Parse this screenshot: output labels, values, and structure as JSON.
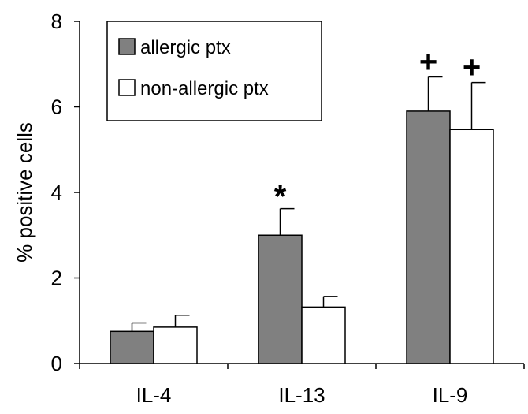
{
  "chart_data": {
    "type": "bar",
    "title": "",
    "xlabel": "",
    "ylabel": "% positive cells",
    "ylim": [
      0,
      8
    ],
    "yticks": [
      "0",
      "2",
      "4",
      "6",
      "8"
    ],
    "categories": [
      "IL-4",
      "IL-13",
      "IL-9"
    ],
    "grid": false,
    "legend_position": "top-left",
    "series": [
      {
        "name": "allergic ptx",
        "color": "#808080",
        "values": [
          0.75,
          3.0,
          5.9
        ],
        "errors": [
          0.2,
          0.62,
          0.8
        ]
      },
      {
        "name": "non-allergic ptx",
        "color": "#ffffff",
        "values": [
          0.85,
          1.32,
          5.47
        ],
        "errors": [
          0.28,
          0.25,
          1.1
        ]
      }
    ],
    "annotations": [
      {
        "category": "IL-13",
        "series": 0,
        "text": "*"
      },
      {
        "category": "IL-9",
        "series": 0,
        "text": "+"
      },
      {
        "category": "IL-9",
        "series": 1,
        "text": "+"
      }
    ]
  }
}
